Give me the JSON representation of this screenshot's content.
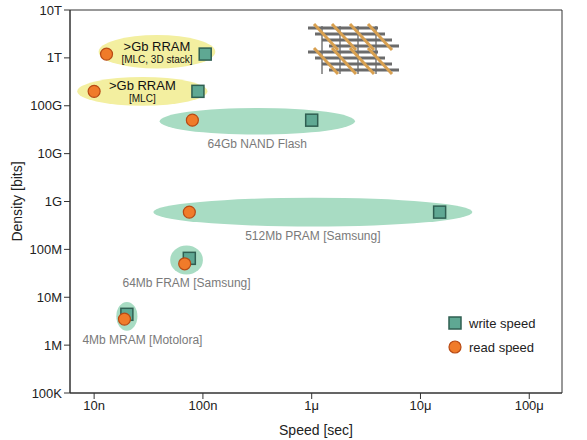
{
  "chart_data": {
    "type": "scatter",
    "x_label": "Speed [sec]",
    "y_label": "Density [bits]",
    "log": true,
    "grid": false,
    "legend": "lower right",
    "xlim": [
      6e-09,
      0.0002
    ],
    "xticks": [
      {
        "value": 1e-08,
        "label": "10n"
      },
      {
        "value": 1e-07,
        "label": "100n"
      },
      {
        "value": 1e-06,
        "label": "1μ"
      },
      {
        "value": 1e-05,
        "label": "10μ"
      },
      {
        "value": 0.0001,
        "label": "100μ"
      }
    ],
    "ylim": [
      100000.0,
      10000000000000.0
    ],
    "yticks": [
      {
        "value": 100000.0,
        "label": "100K"
      },
      {
        "value": 1000000.0,
        "label": "1M"
      },
      {
        "value": 10000000.0,
        "label": "10M"
      },
      {
        "value": 100000000.0,
        "label": "100M"
      },
      {
        "value": 1000000000.0,
        "label": "1G"
      },
      {
        "value": 10000000000.0,
        "label": "10G"
      },
      {
        "value": 100000000000.0,
        "label": "100G"
      },
      {
        "value": 1000000000000.0,
        "label": "1T"
      },
      {
        "value": 10000000000000.0,
        "label": "10T"
      }
    ],
    "series": [
      {
        "name": "write speed",
        "color": "#5fa893",
        "marker": "square",
        "x": [
          1.05e-07,
          9e-08,
          1e-06,
          1.5e-05,
          7.5e-08,
          2e-08
        ],
        "values": [
          1200000000000.0,
          200000000000.0,
          50000000000.0,
          600000000.0,
          65000000.0,
          4400000.0
        ]
      },
      {
        "name": "read speed",
        "color": "#f07b2a",
        "marker": "circle",
        "x": [
          1.3e-08,
          1e-08,
          8e-08,
          7.5e-08,
          6.8e-08,
          1.9e-08
        ],
        "values": [
          1200000000000.0,
          200000000000.0,
          50000000000.0,
          600000000.0,
          50000000.0,
          3500000.0
        ]
      }
    ],
    "groups": [
      {
        "label": ">Gb RRAM",
        "sublabel": "[MLC, 3D stack]",
        "color": "#f3efa0",
        "xrange": [
          1.1e-08,
          1.3e-07
        ],
        "yrange": [
          600000000000.0,
          3000000000000.0
        ]
      },
      {
        "label": ">Gb RRAM",
        "sublabel": "[MLC]",
        "color": "#f3efa0",
        "xrange": [
          7e-09,
          1.1e-07
        ],
        "yrange": [
          100000000000.0,
          400000000000.0
        ]
      },
      {
        "label": "64Gb NAND Flash",
        "color": "#a8dcc3",
        "xrange": [
          4e-08,
          2.5e-06
        ],
        "yrange": [
          25000000000.0,
          90000000000.0
        ]
      },
      {
        "label": "512Mb PRAM [Samsung]",
        "color": "#a8dcc3",
        "xrange": [
          3.5e-08,
          3e-05
        ],
        "yrange": [
          300000000.0,
          1200000000.0
        ]
      },
      {
        "label": "64Mb FRAM [Samsung]",
        "color": "#a8dcc3",
        "xrange": [
          5e-08,
          1e-07
        ],
        "yrange": [
          30000000.0,
          120000000.0
        ]
      },
      {
        "label": "4Mb MRAM [Motolora]",
        "color": "#a8dcc3",
        "xrange": [
          1.6e-08,
          2.5e-08
        ],
        "yrange": [
          2000000.0,
          8000000.0
        ]
      }
    ]
  }
}
